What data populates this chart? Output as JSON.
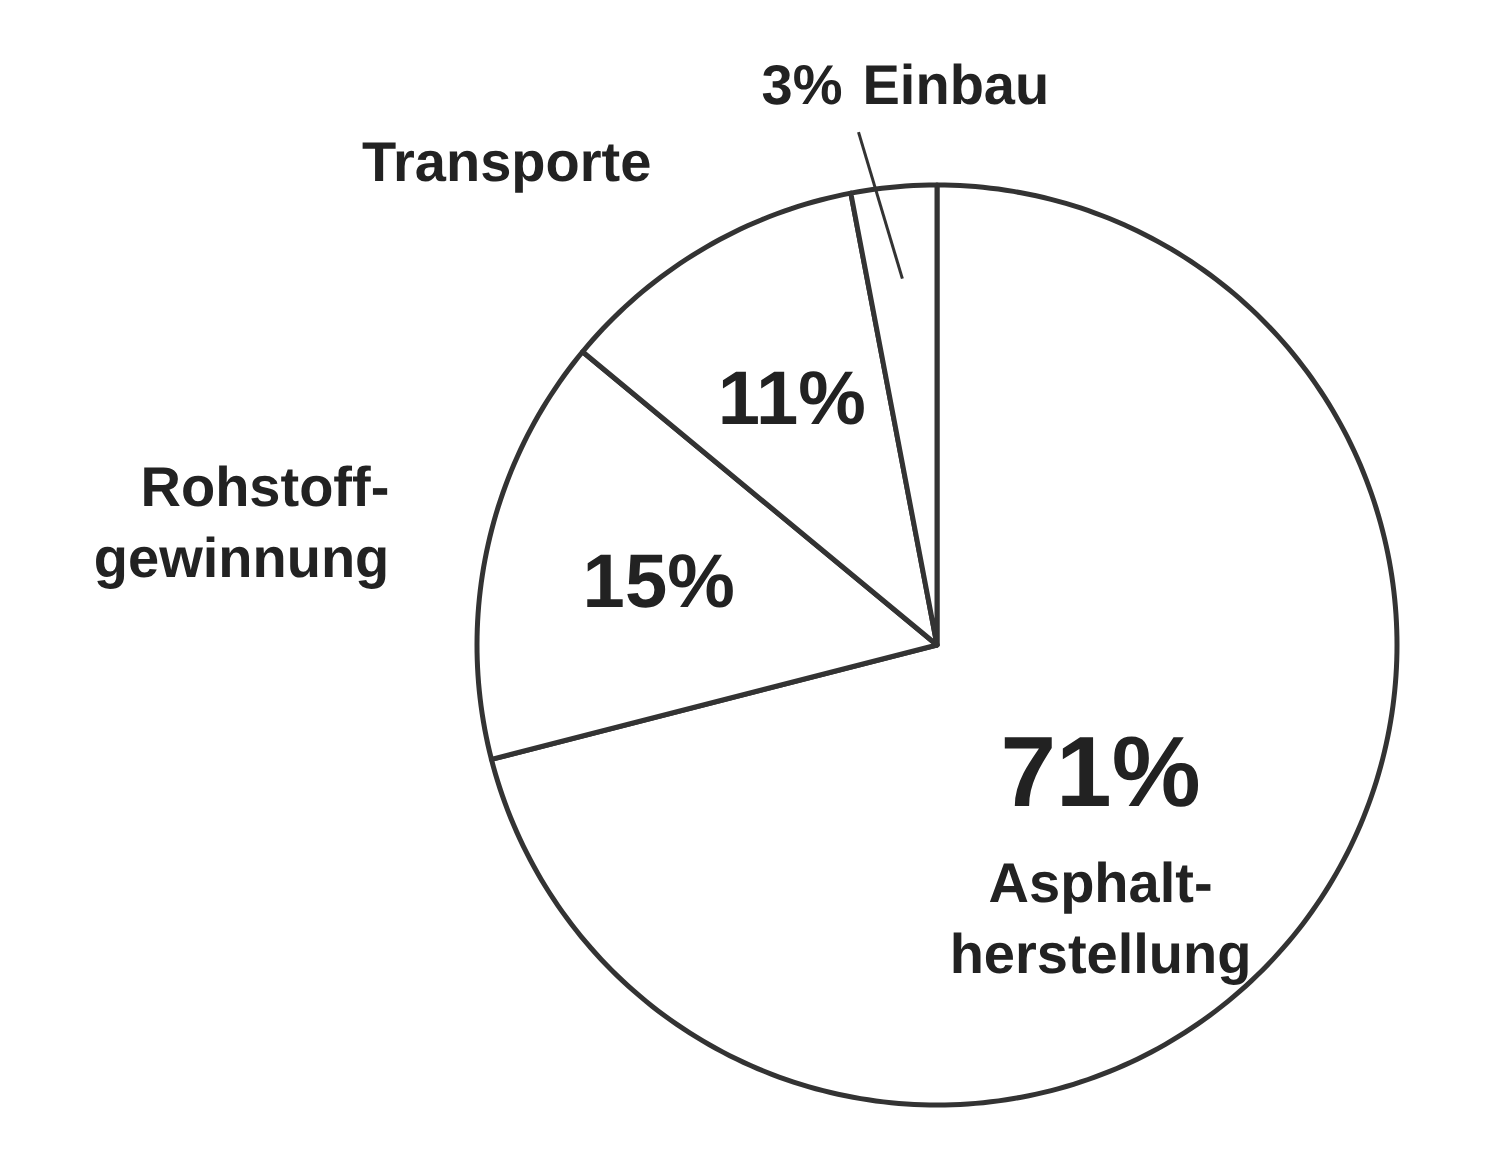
{
  "chart_data": {
    "type": "pie",
    "categories": [
      "Asphalt-\nherstellung",
      "Rohstoff-\ngewinnung",
      "Transporte",
      "Einbau"
    ],
    "values": [
      71,
      15,
      11,
      3
    ],
    "colors": [
      "#ffffff",
      "#ffffff",
      "#ffffff",
      "#ffffff"
    ],
    "value_labels": [
      "71%",
      "15%",
      "11%",
      "3%"
    ],
    "legend": false
  }
}
